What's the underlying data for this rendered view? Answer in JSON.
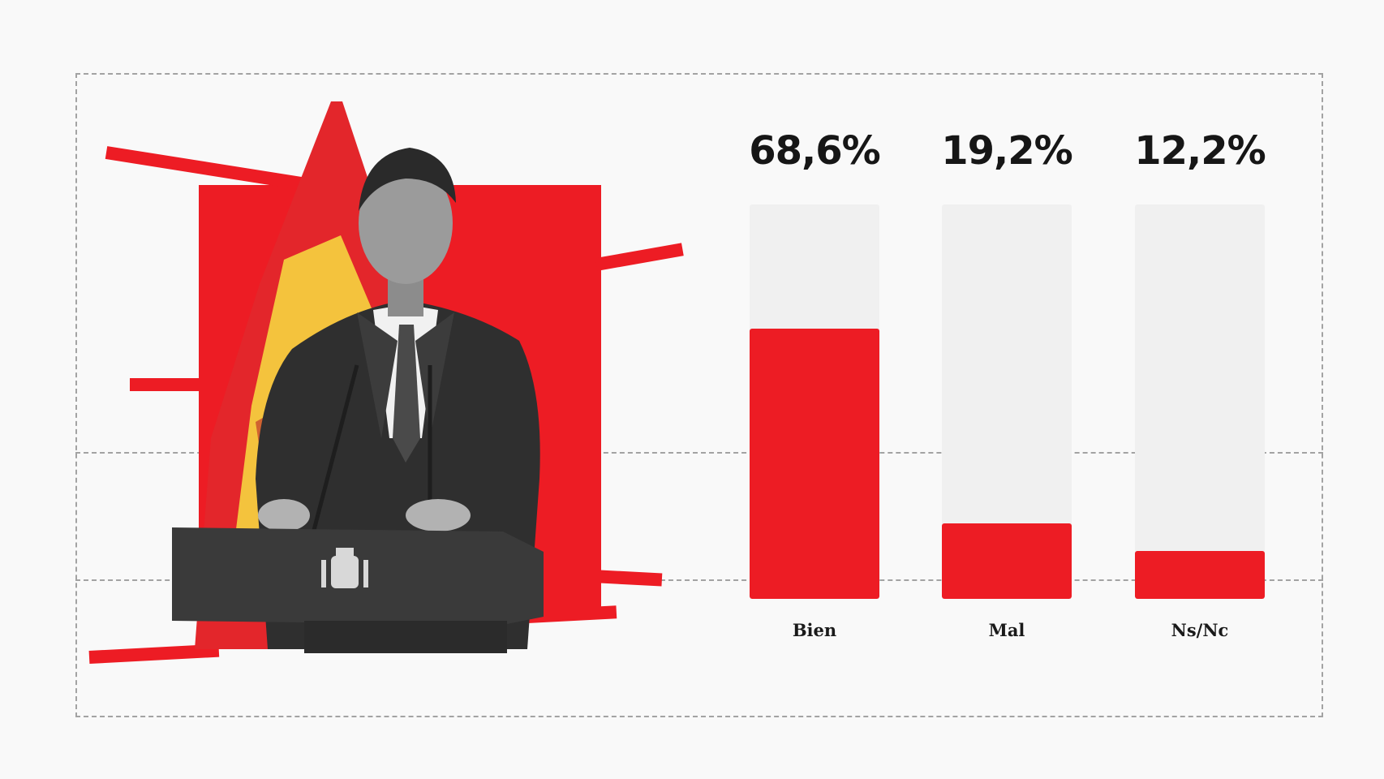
{
  "chart_data": {
    "type": "bar",
    "categories": [
      "Bien",
      "Mal",
      "Ns/Nc"
    ],
    "values": [
      68.6,
      19.2,
      12.2
    ],
    "value_labels": [
      "68,6%",
      "19,2%",
      "12,2%"
    ],
    "unit": "%",
    "ylim": [
      0,
      100
    ],
    "grid": false,
    "colors": {
      "bar": "#ed1c24",
      "track": "#f0f0f0",
      "accent": "#ed1c24"
    }
  },
  "illustration": {
    "subject": "politician at podium with Spanish flag",
    "icon": "spain-coat-of-arms-icon"
  }
}
